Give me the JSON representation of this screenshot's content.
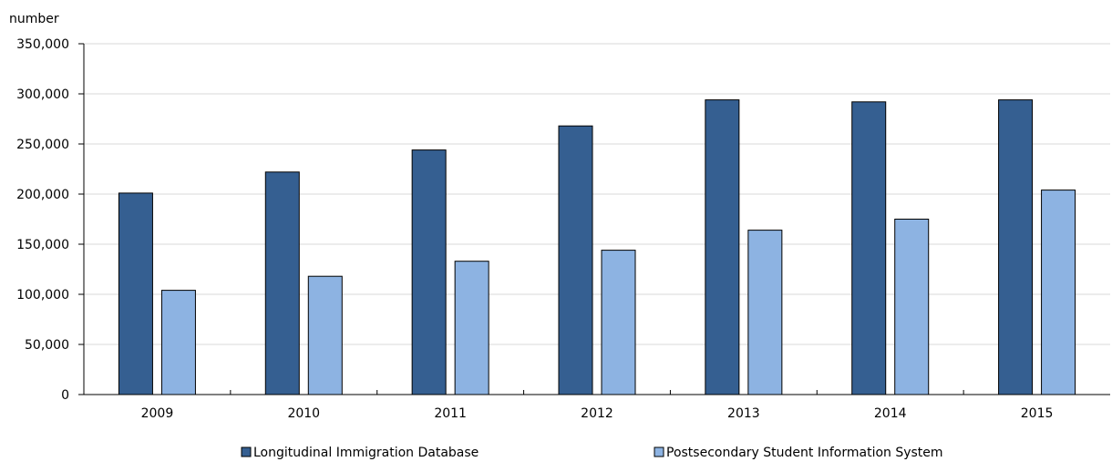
{
  "chart_data": {
    "type": "bar",
    "ylabel": "number",
    "categories": [
      "2009",
      "2010",
      "2011",
      "2012",
      "2013",
      "2014",
      "2015"
    ],
    "series": [
      {
        "name": "Longitudinal Immigration Database",
        "color": "#355f91",
        "values": [
          201000,
          222000,
          244000,
          268000,
          294000,
          292000,
          294000
        ]
      },
      {
        "name": "Postsecondary Student Information System",
        "color": "#8db3e2",
        "values": [
          104000,
          118000,
          133000,
          144000,
          164000,
          175000,
          204000
        ]
      }
    ],
    "ylim": [
      0,
      350000
    ],
    "yticks": [
      "0",
      "50,000",
      "100,000",
      "150,000",
      "200,000",
      "250,000",
      "300,000",
      "350,000"
    ],
    "grid": true,
    "legend_position": "bottom"
  }
}
